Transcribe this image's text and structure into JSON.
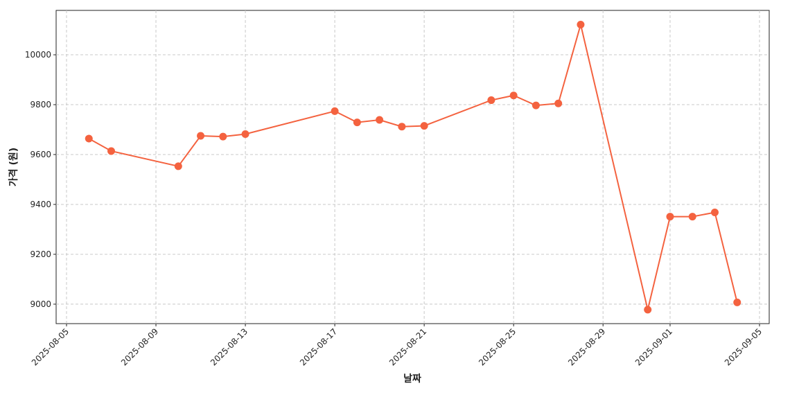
{
  "chart_data": {
    "type": "line",
    "x_label": "날짜",
    "y_label": "가격 (원)",
    "x": [
      "2025-08-06",
      "2025-08-07",
      "2025-08-10",
      "2025-08-11",
      "2025-08-12",
      "2025-08-13",
      "2025-08-17",
      "2025-08-18",
      "2025-08-19",
      "2025-08-20",
      "2025-08-21",
      "2025-08-24",
      "2025-08-25",
      "2025-08-26",
      "2025-08-27",
      "2025-08-28",
      "2025-08-31",
      "2025-09-01",
      "2025-09-02",
      "2025-09-03",
      "2025-09-04"
    ],
    "series": [
      {
        "color": "#f4623f",
        "values": [
          9664,
          9614,
          9553,
          9675,
          9672,
          9682,
          9774,
          9729,
          9739,
          9712,
          9715,
          9818,
          9837,
          9797,
          9805,
          10121,
          8978,
          9351,
          9351,
          9368,
          9007
        ]
      }
    ],
    "xlim": [
      "2025-08-05",
      "2025-09-05"
    ],
    "xticks": [
      "2025-08-05",
      "2025-08-09",
      "2025-08-13",
      "2025-08-17",
      "2025-08-21",
      "2025-08-25",
      "2025-08-29",
      "2025-09-01",
      "2025-09-05"
    ],
    "ylim": [
      8922,
      10178
    ],
    "yticks": [
      9000,
      9200,
      9400,
      9600,
      9800,
      10000
    ],
    "grid": true
  }
}
